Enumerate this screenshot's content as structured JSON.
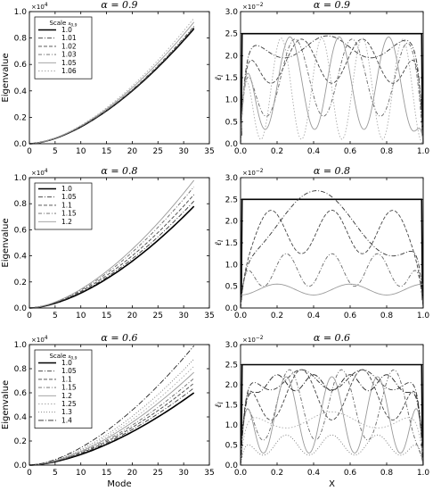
{
  "figure": {
    "left_ylabel": "Eigenvalue",
    "right_ylabel": "ℓ",
    "right_ylabel_sub": "l",
    "bottom_left_xlabel": "Mode",
    "bottom_right_xlabel": "X",
    "left_exponent_label": "×10",
    "left_exponent_power": "4",
    "right_exponent_label": "×10",
    "right_exponent_power": "−2",
    "legend_title": "Scale",
    "legend_title_sub": "s_{0,9}"
  },
  "chart_data": [
    {
      "panel": "row1-left",
      "type": "line",
      "title": "α = 0.9",
      "xlabel": "",
      "ylabel": "Eigenvalue",
      "xlim": [
        0,
        35
      ],
      "ylim": [
        0,
        1.0
      ],
      "xticks": [
        "0",
        "5",
        "10",
        "15",
        "20",
        "25",
        "30",
        "35"
      ],
      "yticks": [
        "0.0",
        "0.2",
        "0.4",
        "0.6",
        "0.8",
        "1.0"
      ],
      "multiplier": "×10^4",
      "legend_title": "Scale s0,9",
      "legend_position": "upper-left",
      "x_end": 32,
      "series": [
        {
          "name": "1.0",
          "end_value": 0.87,
          "style": "solid-thick"
        },
        {
          "name": "1.01",
          "end_value": 0.875,
          "style": "dashdot"
        },
        {
          "name": "1.02",
          "end_value": 0.88,
          "style": "dashed"
        },
        {
          "name": "1.03",
          "end_value": 0.89,
          "style": "dashdot-light"
        },
        {
          "name": "1.05",
          "end_value": 0.92,
          "style": "solid-light"
        },
        {
          "name": "1.06",
          "end_value": 0.95,
          "style": "dotted-light"
        }
      ]
    },
    {
      "panel": "row1-right",
      "type": "line",
      "title": "α = 0.9",
      "xlabel": "",
      "ylabel": "ℓl",
      "xlim": [
        0,
        1
      ],
      "ylim": [
        0,
        3.0
      ],
      "xticks": [
        "0.0",
        "0.2",
        "0.4",
        "0.6",
        "0.8",
        "1.0"
      ],
      "yticks": [
        "0.0",
        "0.5",
        "1.0",
        "1.5",
        "2.0",
        "2.5",
        "3.0"
      ],
      "multiplier": "×10^-2"
    },
    {
      "panel": "row2-left",
      "type": "line",
      "title": "α = 0.8",
      "xlabel": "",
      "ylabel": "Eigenvalue",
      "xlim": [
        0,
        35
      ],
      "ylim": [
        0,
        1.0
      ],
      "xticks": [
        "0",
        "5",
        "10",
        "15",
        "20",
        "25",
        "30",
        "35"
      ],
      "yticks": [
        "0.0",
        "0.2",
        "0.4",
        "0.6",
        "0.8",
        "1.0"
      ],
      "multiplier": "×10^4",
      "legend_title": "",
      "legend_position": "upper-left",
      "x_end": 32,
      "series": [
        {
          "name": "1.0",
          "end_value": 0.78,
          "style": "solid-thick"
        },
        {
          "name": "1.05",
          "end_value": 0.82,
          "style": "dashdot"
        },
        {
          "name": "1.1",
          "end_value": 0.87,
          "style": "dashed"
        },
        {
          "name": "1.15",
          "end_value": 0.93,
          "style": "dashdot-light"
        },
        {
          "name": "1.2",
          "end_value": 0.98,
          "style": "solid-light"
        }
      ]
    },
    {
      "panel": "row2-right",
      "type": "line",
      "title": "α = 0.8",
      "xlabel": "",
      "ylabel": "ℓl",
      "xlim": [
        0,
        1
      ],
      "ylim": [
        0,
        3.0
      ],
      "xticks": [
        "0.0",
        "0.2",
        "0.4",
        "0.6",
        "0.8",
        "1.0"
      ],
      "yticks": [
        "0.0",
        "0.5",
        "1.0",
        "1.5",
        "2.0",
        "2.5",
        "3.0"
      ],
      "multiplier": "×10^-2"
    },
    {
      "panel": "row3-left",
      "type": "line",
      "title": "α = 0.6",
      "xlabel": "Mode",
      "ylabel": "Eigenvalue",
      "xlim": [
        0,
        35
      ],
      "ylim": [
        0,
        1.0
      ],
      "xticks": [
        "0",
        "5",
        "10",
        "15",
        "20",
        "25",
        "30",
        "35"
      ],
      "yticks": [
        "0.0",
        "0.2",
        "0.4",
        "0.6",
        "0.8",
        "1.0"
      ],
      "multiplier": "×10^4",
      "legend_title": "Scale s0,9",
      "legend_position": "upper-left",
      "x_end": 32,
      "series": [
        {
          "name": "1.0",
          "end_value": 0.6,
          "style": "solid-thick"
        },
        {
          "name": "1.05",
          "end_value": 0.64,
          "style": "dashdot"
        },
        {
          "name": "1.1",
          "end_value": 0.68,
          "style": "dashed"
        },
        {
          "name": "1.15",
          "end_value": 0.72,
          "style": "dashdot-light"
        },
        {
          "name": "1.2",
          "end_value": 0.77,
          "style": "solid-light"
        },
        {
          "name": "1.25",
          "end_value": 0.82,
          "style": "dotted-light"
        },
        {
          "name": "1.3",
          "end_value": 0.88,
          "style": "dotted"
        },
        {
          "name": "1.4",
          "end_value": 0.99,
          "style": "dashdot-dark"
        }
      ]
    },
    {
      "panel": "row3-right",
      "type": "line",
      "title": "α = 0.6",
      "xlabel": "X",
      "ylabel": "ℓl",
      "xlim": [
        0,
        1
      ],
      "ylim": [
        0,
        3.0
      ],
      "xticks": [
        "0.0",
        "0.2",
        "0.4",
        "0.6",
        "0.8",
        "1.0"
      ],
      "yticks": [
        "0.0",
        "0.5",
        "1.0",
        "1.5",
        "2.0",
        "2.5",
        "3.0"
      ],
      "multiplier": "×10^-2"
    }
  ]
}
